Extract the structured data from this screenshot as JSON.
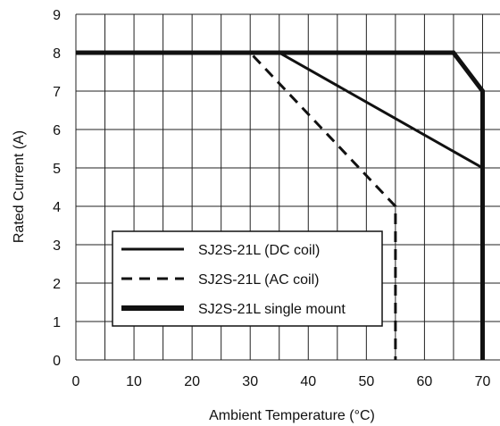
{
  "chart_data": {
    "type": "line",
    "title": "",
    "xlabel": "Ambient Temperature (°C)",
    "ylabel": "Rated Current (A)",
    "xlim": [
      0,
      73
    ],
    "ylim": [
      0,
      9
    ],
    "x_ticks": [
      0,
      10,
      20,
      30,
      40,
      50,
      60,
      70
    ],
    "y_ticks": [
      0,
      1,
      2,
      3,
      4,
      5,
      6,
      7,
      8,
      9
    ],
    "x_grid_step": 5,
    "y_grid_step": 1,
    "grid": true,
    "legend_position": "bottom-left",
    "series": [
      {
        "name": "SJ2S-21L (DC coil)",
        "style": "solid",
        "weight": "normal",
        "points": [
          [
            0,
            8
          ],
          [
            35,
            8
          ],
          [
            70,
            5
          ],
          [
            70,
            0
          ]
        ]
      },
      {
        "name": "SJ2S-21L (AC coil)",
        "style": "dashed",
        "weight": "normal",
        "points": [
          [
            0,
            8
          ],
          [
            30,
            8
          ],
          [
            55,
            4
          ],
          [
            55,
            0
          ]
        ]
      },
      {
        "name": "SJ2S-21L single mount",
        "style": "solid",
        "weight": "bold",
        "points": [
          [
            0,
            8
          ],
          [
            65,
            8
          ],
          [
            70,
            7
          ],
          [
            70,
            0
          ]
        ]
      }
    ]
  }
}
